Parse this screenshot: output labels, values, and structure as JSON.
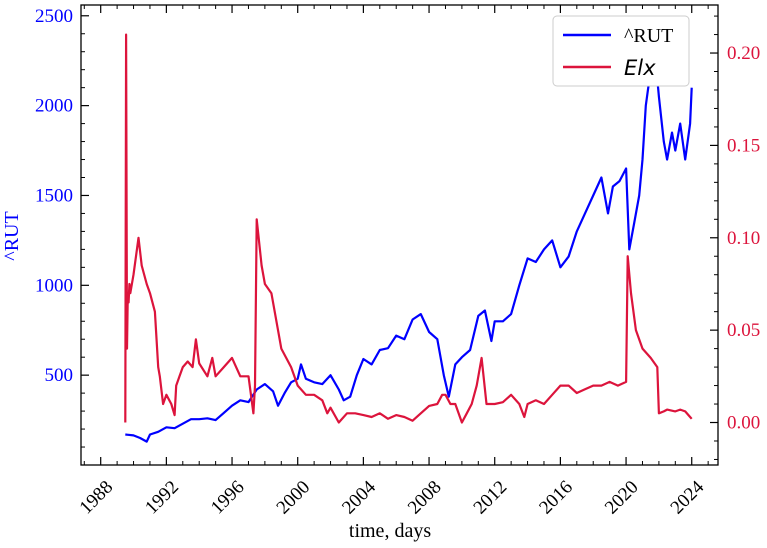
{
  "chart_data": {
    "type": "line",
    "title": "",
    "xlabel": "time, days",
    "ylabel_left": "^RUT",
    "ylabel_right": "",
    "xlim": [
      1986.8,
      2025.6
    ],
    "ylim_left": [
      0,
      2560
    ],
    "ylim_right": [
      -0.023,
      0.226
    ],
    "x_ticks": [
      "1988",
      "1992",
      "1996",
      "2000",
      "2004",
      "2008",
      "2012",
      "2016",
      "2020",
      "2024"
    ],
    "y_left_ticks": [
      "500",
      "1000",
      "1500",
      "2000",
      "2500"
    ],
    "y_right_ticks": [
      "0.00",
      "0.05",
      "0.10",
      "0.15",
      "0.20"
    ],
    "grid": false,
    "legend_position": "top-right",
    "colors": {
      "rut": "#0000ff",
      "elx": "#dc143c"
    },
    "series": [
      {
        "name": "^RUT",
        "axis": "left",
        "x": [
          1989.5,
          1990.0,
          1990.4,
          1990.8,
          1991.0,
          1991.5,
          1992.0,
          1992.5,
          1993.0,
          1993.5,
          1994.0,
          1994.5,
          1995.0,
          1995.5,
          1996.0,
          1996.5,
          1997.0,
          1997.5,
          1998.0,
          1998.5,
          1998.8,
          1999.2,
          1999.6,
          2000.0,
          2000.2,
          2000.5,
          2001.0,
          2001.5,
          2002.0,
          2002.5,
          2002.8,
          2003.2,
          2003.6,
          2004.0,
          2004.5,
          2005.0,
          2005.5,
          2006.0,
          2006.5,
          2007.0,
          2007.5,
          2008.0,
          2008.5,
          2008.9,
          2009.2,
          2009.6,
          2010.0,
          2010.5,
          2011.0,
          2011.4,
          2011.8,
          2012.0,
          2012.5,
          2013.0,
          2013.5,
          2014.0,
          2014.5,
          2015.0,
          2015.5,
          2016.0,
          2016.5,
          2017.0,
          2017.5,
          2018.0,
          2018.5,
          2018.9,
          2019.2,
          2019.6,
          2020.0,
          2020.2,
          2020.5,
          2020.8,
          2021.0,
          2021.2,
          2021.5,
          2021.8,
          2022.0,
          2022.3,
          2022.5,
          2022.8,
          2023.0,
          2023.3,
          2023.6,
          2023.9,
          2024.0
        ],
        "values": [
          170,
          165,
          150,
          130,
          170,
          185,
          210,
          205,
          230,
          255,
          255,
          260,
          250,
          290,
          330,
          360,
          350,
          420,
          450,
          410,
          330,
          400,
          460,
          480,
          560,
          480,
          460,
          450,
          500,
          420,
          360,
          380,
          500,
          590,
          560,
          640,
          650,
          720,
          700,
          810,
          840,
          740,
          700,
          500,
          380,
          560,
          600,
          640,
          830,
          860,
          690,
          800,
          800,
          840,
          1000,
          1150,
          1130,
          1200,
          1250,
          1100,
          1160,
          1300,
          1400,
          1500,
          1600,
          1400,
          1550,
          1580,
          1650,
          1200,
          1350,
          1500,
          1700,
          2000,
          2200,
          2250,
          2050,
          1800,
          1700,
          1850,
          1750,
          1900,
          1700,
          1900,
          2100
        ]
      },
      {
        "name": "Elx",
        "axis": "right",
        "x": [
          1989.5,
          1989.55,
          1989.6,
          1989.65,
          1989.7,
          1989.75,
          1989.8,
          1990.0,
          1990.3,
          1990.5,
          1990.8,
          1991.0,
          1991.3,
          1991.5,
          1991.6,
          1991.8,
          1992.0,
          1992.3,
          1992.5,
          1992.6,
          1992.8,
          1993.0,
          1993.3,
          1993.6,
          1993.8,
          1994.0,
          1994.5,
          1994.8,
          1995.0,
          1995.5,
          1996.0,
          1996.5,
          1997.0,
          1997.3,
          1997.4,
          1997.5,
          1997.8,
          1998.0,
          1998.4,
          1998.8,
          1999.0,
          1999.3,
          1999.6,
          2000.0,
          2000.5,
          2001.0,
          2001.5,
          2001.8,
          2002.0,
          2002.5,
          2003.0,
          2003.5,
          2004.0,
          2004.5,
          2005.0,
          2005.5,
          2006.0,
          2006.5,
          2007.0,
          2007.5,
          2008.0,
          2008.5,
          2008.8,
          2009.0,
          2009.3,
          2009.6,
          2010.0,
          2010.3,
          2010.6,
          2010.9,
          2011.2,
          2011.5,
          2011.8,
          2012.0,
          2012.5,
          2013.0,
          2013.5,
          2013.8,
          2014.0,
          2014.5,
          2015.0,
          2015.5,
          2016.0,
          2016.5,
          2017.0,
          2017.5,
          2018.0,
          2018.5,
          2019.0,
          2019.5,
          2020.0,
          2020.1,
          2020.3,
          2020.6,
          2021.0,
          2021.5,
          2021.9,
          2022.0,
          2022.3,
          2022.5,
          2023.0,
          2023.3,
          2023.6,
          2023.9,
          2024.0
        ],
        "values": [
          0.0,
          0.21,
          0.04,
          0.07,
          0.065,
          0.075,
          0.07,
          0.08,
          0.1,
          0.085,
          0.075,
          0.07,
          0.06,
          0.03,
          0.025,
          0.01,
          0.015,
          0.01,
          0.004,
          0.02,
          0.025,
          0.03,
          0.033,
          0.03,
          0.045,
          0.032,
          0.025,
          0.035,
          0.025,
          0.03,
          0.035,
          0.025,
          0.025,
          0.005,
          0.02,
          0.11,
          0.085,
          0.075,
          0.07,
          0.05,
          0.04,
          0.035,
          0.03,
          0.02,
          0.015,
          0.015,
          0.012,
          0.005,
          0.008,
          0.0,
          0.005,
          0.005,
          0.004,
          0.003,
          0.005,
          0.002,
          0.004,
          0.003,
          0.001,
          0.005,
          0.009,
          0.01,
          0.015,
          0.015,
          0.01,
          0.01,
          0.0,
          0.005,
          0.01,
          0.02,
          0.035,
          0.01,
          0.01,
          0.01,
          0.011,
          0.015,
          0.01,
          0.003,
          0.01,
          0.012,
          0.01,
          0.015,
          0.02,
          0.02,
          0.016,
          0.018,
          0.02,
          0.02,
          0.022,
          0.02,
          0.022,
          0.09,
          0.07,
          0.05,
          0.04,
          0.035,
          0.03,
          0.005,
          0.006,
          0.007,
          0.006,
          0.007,
          0.006,
          0.003,
          0.002
        ]
      }
    ]
  }
}
